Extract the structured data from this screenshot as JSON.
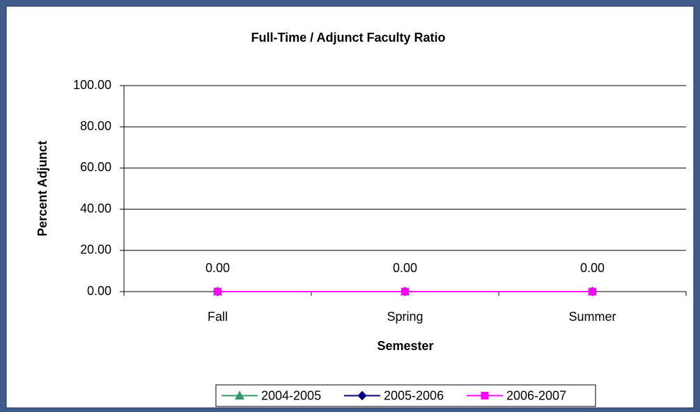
{
  "chart_data": {
    "type": "line",
    "title": "Full-Time / Adjunct Faculty Ratio",
    "x_label": "Semester",
    "y_label": "Percent Adjunct",
    "categories": [
      "Fall",
      "Spring",
      "Summer"
    ],
    "series": [
      {
        "name": "2004-2005",
        "color": "#339966",
        "marker": "triangle",
        "values": [
          0,
          0,
          0
        ]
      },
      {
        "name": "2005-2006",
        "color": "#000080",
        "marker": "diamond",
        "values": [
          0,
          0,
          0
        ]
      },
      {
        "name": "2006-2007",
        "color": "#ff00ff",
        "marker": "square",
        "values": [
          0,
          0,
          0
        ],
        "value_labels": [
          "0.00",
          "0.00",
          "0.00"
        ]
      }
    ],
    "ylim": [
      0,
      100
    ],
    "yticks": [
      {
        "value": 0,
        "label": "0.00"
      },
      {
        "value": 20,
        "label": "20.00"
      },
      {
        "value": 40,
        "label": "40.00"
      },
      {
        "value": 60,
        "label": "60.00"
      },
      {
        "value": 80,
        "label": "80.00"
      },
      {
        "value": 100,
        "label": "100.00"
      }
    ],
    "grid": true,
    "legend": "bottom"
  }
}
